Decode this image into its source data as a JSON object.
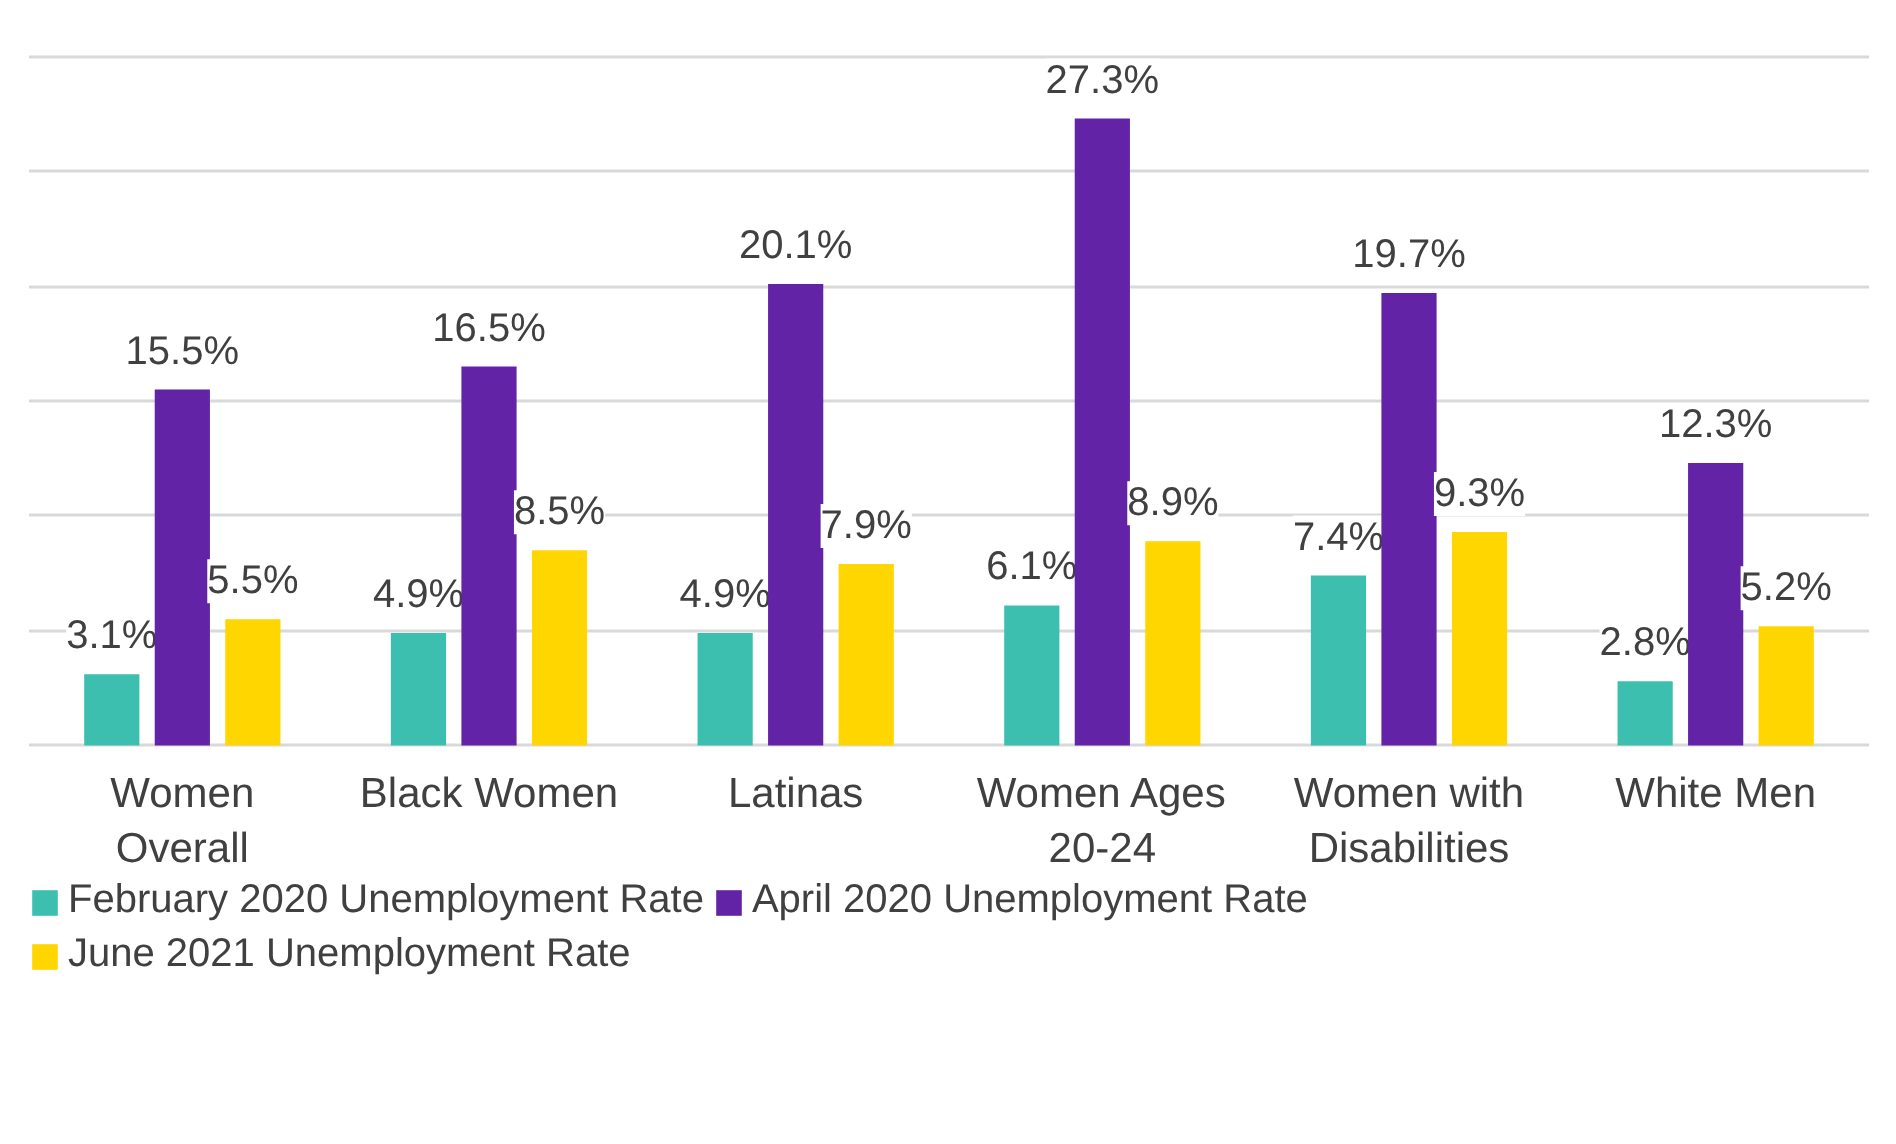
{
  "chart_data": {
    "type": "bar",
    "categories": [
      "Women Overall",
      "Black Women",
      "Latinas",
      "Women Ages 20-24",
      "Women with Disabilities",
      "White Men"
    ],
    "series": [
      {
        "name": "February 2020 Unemployment Rate",
        "color": "#3dbfb0",
        "values": [
          3.1,
          4.9,
          4.9,
          6.1,
          7.4,
          2.8
        ],
        "value_labels": [
          "3.1%",
          "4.9%",
          "4.9%",
          "6.1%",
          "7.4%",
          "2.8%"
        ]
      },
      {
        "name": "April 2020 Unemployment Rate",
        "color": "#6223a6",
        "values": [
          15.5,
          16.5,
          20.1,
          27.3,
          19.7,
          12.3
        ],
        "value_labels": [
          "15.5%",
          "16.5%",
          "20.1%",
          "27.3%",
          "19.7%",
          "12.3%"
        ]
      },
      {
        "name": "June 2021 Unemployment Rate",
        "color": "#ffd600",
        "values": [
          5.5,
          8.5,
          7.9,
          8.9,
          9.3,
          5.2
        ],
        "value_labels": [
          "5.5%",
          "8.5%",
          "7.9%",
          "8.9%",
          "9.3%",
          "5.2%"
        ]
      }
    ],
    "yticks": [
      {
        "value": 0,
        "label": null
      },
      {
        "value": 5,
        "label": null
      },
      {
        "value": 10,
        "label": null
      },
      {
        "value": 15,
        "label": null
      },
      {
        "value": 20,
        "label": null
      },
      {
        "value": 25,
        "label": null
      },
      {
        "value": 30,
        "label": null
      }
    ],
    "tick_labels": "x",
    "grid": "y",
    "legend": "bottom"
  }
}
